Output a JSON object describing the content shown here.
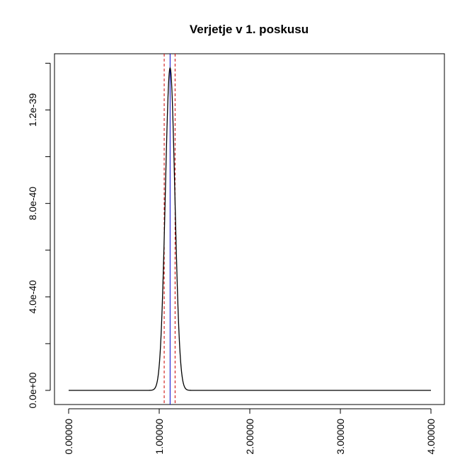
{
  "chart_data": {
    "type": "line",
    "title": "Verjetje v 1. poskusu",
    "xlabel": "",
    "ylabel": "",
    "xlim": [
      0,
      4
    ],
    "ylim": [
      0,
      1.38e-39
    ],
    "grid": false,
    "x_ticks": [
      {
        "value": 0,
        "label": "0.00000"
      },
      {
        "value": 1,
        "label": "1.00000"
      },
      {
        "value": 2,
        "label": "2.00000"
      },
      {
        "value": 3,
        "label": "3.00000"
      },
      {
        "value": 4,
        "label": "4.00000"
      }
    ],
    "y_ticks_labeled": [
      {
        "value": 0,
        "label": "0.0e+00"
      },
      {
        "value": 4e-40,
        "label": "4.0e-40"
      },
      {
        "value": 8e-40,
        "label": "8.0e-40"
      },
      {
        "value": 1.2e-39,
        "label": "1.2e-39"
      }
    ],
    "y_ticks_minor": [
      2e-40,
      6e-40,
      1e-39,
      1.4e-39
    ],
    "series": [
      {
        "color": "#000000",
        "peak_x": 1.12,
        "peak_y": 1.38e-39,
        "sd": 0.053,
        "x_start": 0,
        "x_end": 4
      }
    ],
    "reference_lines": [
      {
        "x": 1.055,
        "color": "#cc0000",
        "style": "dashed"
      },
      {
        "x": 1.12,
        "color": "#0000cc",
        "style": "solid"
      },
      {
        "x": 1.175,
        "color": "#cc0000",
        "style": "dashed"
      }
    ]
  }
}
